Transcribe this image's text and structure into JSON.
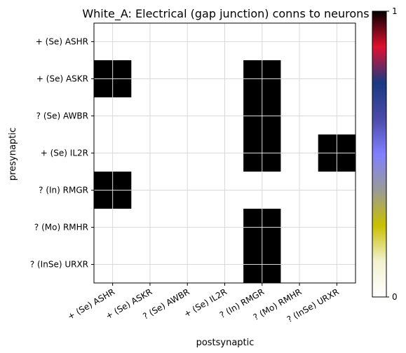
{
  "chart_data": {
    "type": "heatmap",
    "title": "White_A: Electrical (gap junction) conns to neurons",
    "xlabel": "postsynaptic",
    "ylabel": "presynaptic",
    "x_categories": [
      "+ (Se) ASHR",
      "+ (Se) ASKR",
      "? (Se) AWBR",
      "+ (Se) IL2R",
      "? (In) RMGR",
      "? (Mo) RMHR",
      "? (InSe) URXR"
    ],
    "y_categories": [
      "+ (Se) ASHR",
      "+ (Se) ASKR",
      "? (Se) AWBR",
      "+ (Se) IL2R",
      "? (In) RMGR",
      "? (Mo) RMHR",
      "? (InSe) URXR"
    ],
    "values": [
      [
        0,
        0,
        0,
        0,
        0,
        0,
        0
      ],
      [
        1,
        0,
        0,
        0,
        1,
        0,
        0
      ],
      [
        0,
        0,
        0,
        0,
        1,
        0,
        0
      ],
      [
        0,
        0,
        0,
        0,
        1,
        0,
        1
      ],
      [
        1,
        0,
        0,
        0,
        0,
        0,
        0
      ],
      [
        0,
        0,
        0,
        0,
        1,
        0,
        0
      ],
      [
        0,
        0,
        0,
        0,
        1,
        0,
        0
      ]
    ],
    "colorbar": {
      "range": [
        0,
        1
      ],
      "tick_labels": [
        "0",
        "1"
      ],
      "colors": [
        "#ffffff",
        "#f2f2d0",
        "#c8c000",
        "#9a9a9a",
        "#8080ff",
        "#4a4aa8",
        "#1a3a80",
        "#e01030",
        "#000000"
      ]
    },
    "grid": true,
    "cell_color_on": "#000000",
    "cell_color_off": "#ffffff",
    "grid_color": "#d9d9d9"
  }
}
